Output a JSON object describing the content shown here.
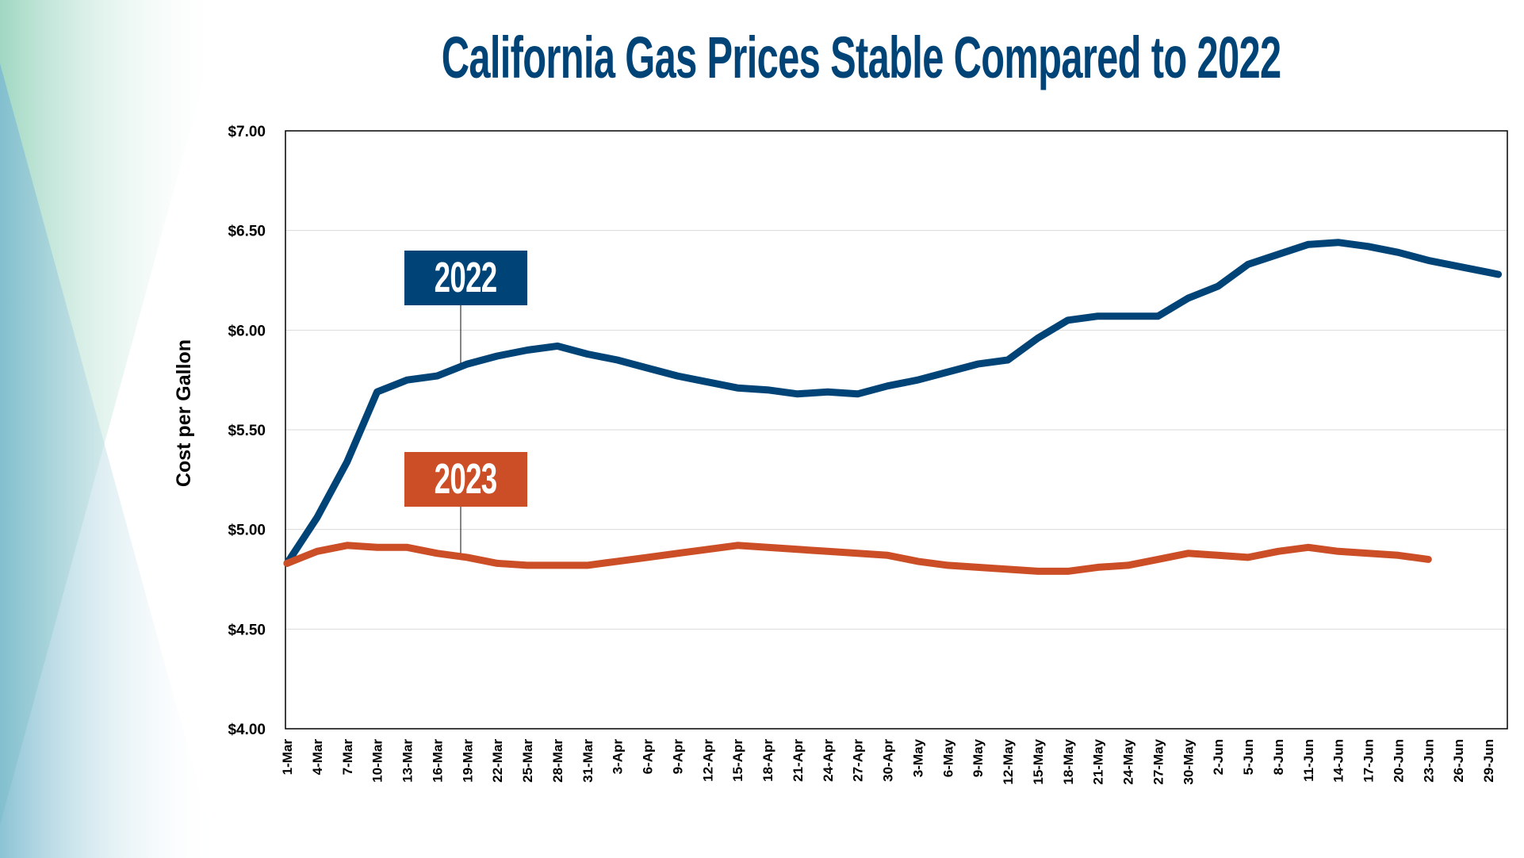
{
  "title": "California Gas Prices Stable Compared to 2022",
  "colors": {
    "title": "#004477",
    "series_2022": "#004477",
    "series_2023": "#cc4e27"
  },
  "chart_data": {
    "type": "line",
    "title": "California Gas Prices Stable Compared to 2022",
    "xlabel": "",
    "ylabel": "Cost per Gallon",
    "ylim": [
      4.0,
      7.0
    ],
    "yticks": [
      "$4.00",
      "$4.50",
      "$5.00",
      "$5.50",
      "$6.00",
      "$6.50",
      "$7.00"
    ],
    "ytick_values": [
      4.0,
      4.5,
      5.0,
      5.5,
      6.0,
      6.5,
      7.0
    ],
    "xticks": [
      "1-Mar",
      "4-Mar",
      "7-Mar",
      "10-Mar",
      "13-Mar",
      "16-Mar",
      "19-Mar",
      "22-Mar",
      "25-Mar",
      "28-Mar",
      "31-Mar",
      "3-Apr",
      "6-Apr",
      "9-Apr",
      "12-Apr",
      "15-Apr",
      "18-Apr",
      "21-Apr",
      "24-Apr",
      "27-Apr",
      "30-Apr",
      "3-May",
      "6-May",
      "9-May",
      "12-May",
      "15-May",
      "18-May",
      "21-May",
      "24-May",
      "27-May",
      "30-May",
      "2-Jun",
      "5-Jun",
      "8-Jun",
      "11-Jun",
      "14-Jun",
      "17-Jun",
      "20-Jun",
      "23-Jun",
      "26-Jun",
      "29-Jun"
    ],
    "xlim": [
      "1-Mar",
      "30-Jun"
    ],
    "grid": "horizontal",
    "legend": "inline labels",
    "series": [
      {
        "name": "2022",
        "x": [
          "1-Mar",
          "4-Mar",
          "7-Mar",
          "10-Mar",
          "13-Mar",
          "16-Mar",
          "19-Mar",
          "22-Mar",
          "25-Mar",
          "28-Mar",
          "31-Mar",
          "3-Apr",
          "6-Apr",
          "9-Apr",
          "12-Apr",
          "15-Apr",
          "18-Apr",
          "21-Apr",
          "24-Apr",
          "27-Apr",
          "30-Apr",
          "3-May",
          "6-May",
          "9-May",
          "12-May",
          "15-May",
          "18-May",
          "21-May",
          "24-May",
          "27-May",
          "30-May",
          "2-Jun",
          "5-Jun",
          "8-Jun",
          "11-Jun",
          "14-Jun",
          "17-Jun",
          "20-Jun",
          "23-Jun",
          "26-Jun",
          "29-Jun",
          "30-Jun"
        ],
        "values": [
          4.83,
          5.06,
          5.34,
          5.69,
          5.75,
          5.77,
          5.83,
          5.87,
          5.9,
          5.92,
          5.88,
          5.85,
          5.81,
          5.77,
          5.74,
          5.71,
          5.7,
          5.68,
          5.69,
          5.68,
          5.72,
          5.75,
          5.79,
          5.83,
          5.85,
          5.96,
          6.05,
          6.07,
          6.07,
          6.07,
          6.16,
          6.22,
          6.33,
          6.38,
          6.43,
          6.44,
          6.42,
          6.39,
          6.35,
          6.32,
          6.29,
          6.28
        ]
      },
      {
        "name": "2023",
        "x": [
          "1-Mar",
          "4-Mar",
          "7-Mar",
          "10-Mar",
          "13-Mar",
          "16-Mar",
          "19-Mar",
          "22-Mar",
          "25-Mar",
          "28-Mar",
          "31-Mar",
          "3-Apr",
          "6-Apr",
          "9-Apr",
          "12-Apr",
          "15-Apr",
          "18-Apr",
          "21-Apr",
          "24-Apr",
          "27-Apr",
          "30-Apr",
          "3-May",
          "6-May",
          "9-May",
          "12-May",
          "15-May",
          "18-May",
          "21-May",
          "24-May",
          "27-May",
          "30-May",
          "2-Jun",
          "5-Jun",
          "8-Jun",
          "11-Jun",
          "14-Jun",
          "17-Jun",
          "20-Jun",
          "23-Jun"
        ],
        "values": [
          4.83,
          4.89,
          4.92,
          4.91,
          4.91,
          4.88,
          4.86,
          4.83,
          4.82,
          4.82,
          4.82,
          4.84,
          4.86,
          4.88,
          4.9,
          4.92,
          4.91,
          4.9,
          4.89,
          4.88,
          4.87,
          4.84,
          4.82,
          4.81,
          4.8,
          4.79,
          4.79,
          4.81,
          4.82,
          4.85,
          4.88,
          4.87,
          4.86,
          4.89,
          4.91,
          4.89,
          4.88,
          4.87,
          4.85
        ]
      }
    ],
    "annotations": [
      {
        "text": "2022",
        "series": "2022",
        "points_to": "19-Mar"
      },
      {
        "text": "2023",
        "series": "2023",
        "points_to": "19-Mar"
      }
    ]
  }
}
